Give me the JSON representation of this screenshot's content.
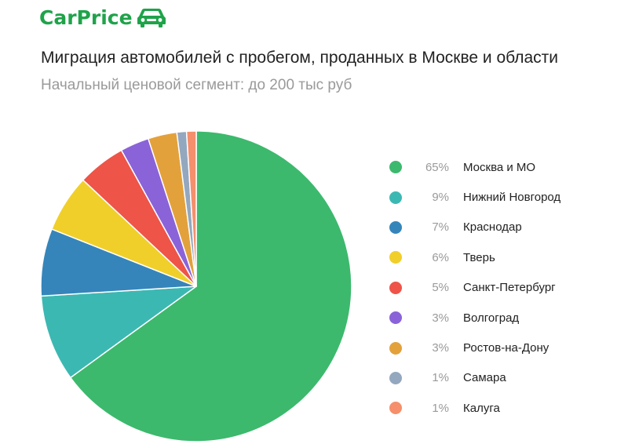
{
  "brand": {
    "name": "CarPrice",
    "color": "#1fa34a",
    "icon": "car-icon"
  },
  "chart_data": {
    "type": "pie",
    "title": "Миграция автомобилей с пробегом, проданных в Москве и области",
    "subtitle": "Начальный ценовой сегмент: до 200 тыс руб",
    "legend_position": "right",
    "slices": [
      {
        "label": "Москва и МО",
        "value": 65,
        "display": "65%",
        "color": "#3cb96d"
      },
      {
        "label": "Нижний Новгород",
        "value": 9,
        "display": "9%",
        "color": "#3cb8b2"
      },
      {
        "label": "Краснодар",
        "value": 7,
        "display": "7%",
        "color": "#3585ba"
      },
      {
        "label": "Тверь",
        "value": 6,
        "display": "6%",
        "color": "#f0cf2a"
      },
      {
        "label": "Санкт-Петербург",
        "value": 5,
        "display": "5%",
        "color": "#ee5448"
      },
      {
        "label": "Волгоград",
        "value": 3,
        "display": "3%",
        "color": "#8a63d8"
      },
      {
        "label": "Ростов-на-Дону",
        "value": 3,
        "display": "3%",
        "color": "#e3a13c"
      },
      {
        "label": "Самара",
        "value": 1,
        "display": "1%",
        "color": "#93a8be"
      },
      {
        "label": "Калуга",
        "value": 1,
        "display": "1%",
        "color": "#f58f6c"
      }
    ]
  }
}
